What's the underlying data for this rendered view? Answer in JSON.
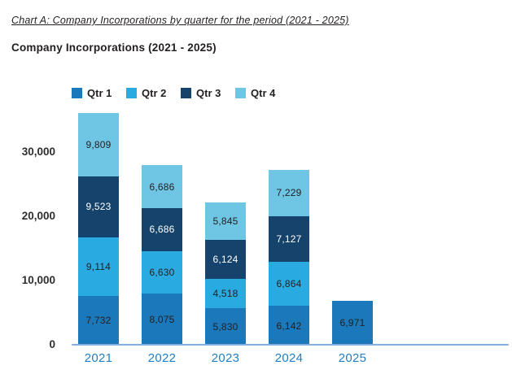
{
  "header": {
    "caption": "Chart A: Company Incorporations by quarter for the period (2021 - 2025)",
    "title": "Company Incorporations (2021 - 2025)"
  },
  "colors": {
    "qtr1": "#1B78BA",
    "qtr2": "#29ABE2",
    "qtr3": "#16436B",
    "qtr4": "#6FC5E4",
    "axis_line": "#7FB2E0",
    "x_label": "#1F7EC4",
    "text_dark": "#231F20",
    "text_light": "#FFFFFF"
  },
  "chart_data": {
    "type": "bar",
    "stacked": true,
    "title": "Company Incorporations (2021 - 2025)",
    "categories": [
      "2021",
      "2022",
      "2023",
      "2024",
      "2025"
    ],
    "series": [
      {
        "name": "Qtr 1",
        "color": "#1B78BA",
        "label_color": "#231F20",
        "values": [
          7732,
          8075,
          5830,
          6142,
          6971
        ]
      },
      {
        "name": "Qtr 2",
        "color": "#29ABE2",
        "label_color": "#231F20",
        "values": [
          9114,
          6630,
          4518,
          6864,
          null
        ]
      },
      {
        "name": "Qtr 3",
        "color": "#16436B",
        "label_color": "#FFFFFF",
        "values": [
          9523,
          6686,
          6124,
          7127,
          null
        ]
      },
      {
        "name": "Qtr 4",
        "color": "#6FC5E4",
        "label_color": "#231F20",
        "values": [
          9809,
          6686,
          5845,
          7229,
          null
        ]
      }
    ],
    "totals": [
      36178,
      28077,
      22317,
      27362,
      6971
    ],
    "xlabel": "",
    "ylabel": "",
    "ylim": [
      0,
      37000
    ],
    "y_ticks": [
      0,
      10000,
      20000,
      30000
    ],
    "y_tick_labels": [
      "0",
      "10,000",
      "20,000",
      "30,000"
    ],
    "grid": false,
    "legend_position": "top"
  }
}
